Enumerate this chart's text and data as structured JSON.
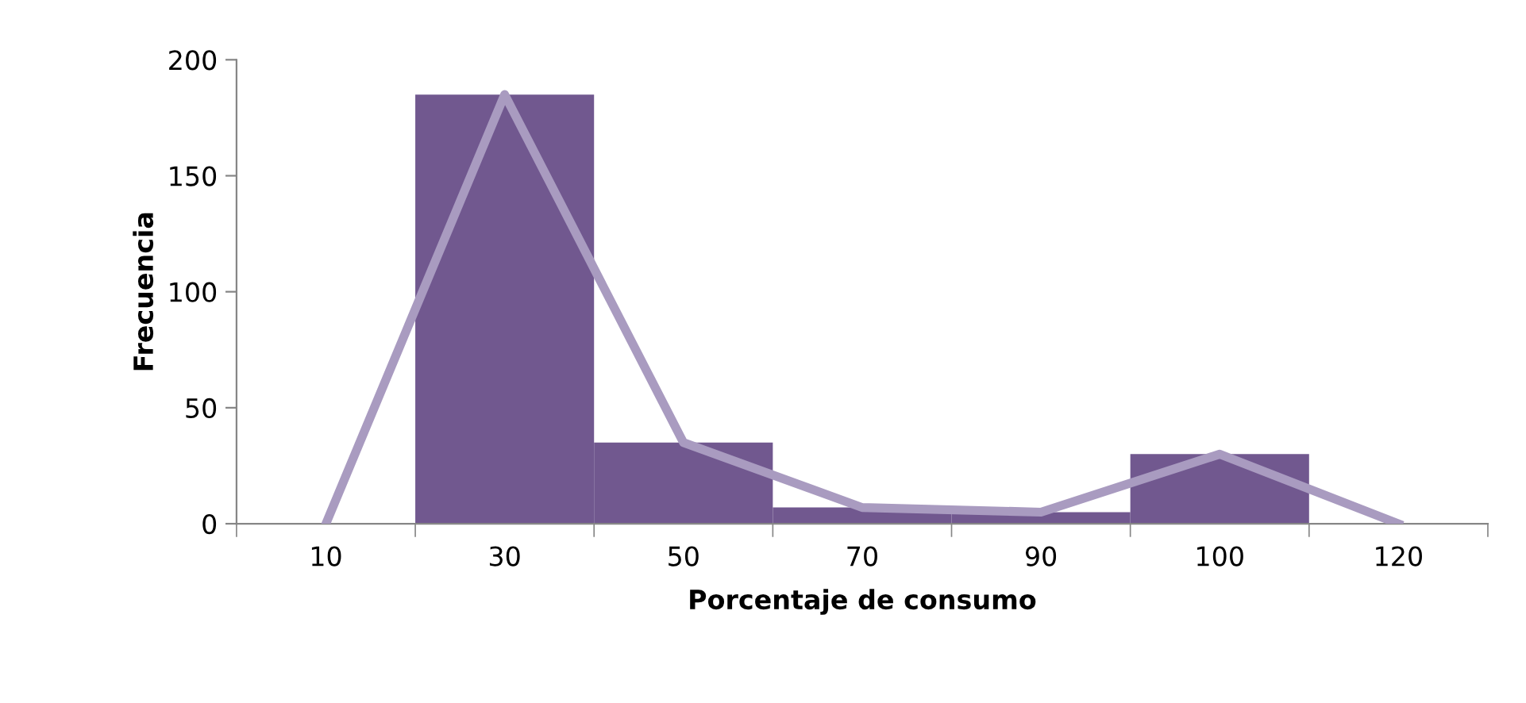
{
  "chart_data": {
    "type": "bar",
    "xlabel": "Porcentaje de consumo",
    "ylabel": "Frecuencia",
    "categories": [
      "10",
      "30",
      "50",
      "70",
      "90",
      "100",
      "120"
    ],
    "series": [
      {
        "color": "#71588f",
        "values": [
          0,
          185,
          35,
          7,
          5,
          30,
          0
        ]
      },
      {
        "type": "line",
        "color": "#a99bc0",
        "values": [
          0,
          185,
          35,
          7,
          5,
          30,
          0
        ]
      }
    ],
    "ylim": [
      0,
      200
    ],
    "yticks": [
      0,
      50,
      100,
      150,
      200
    ],
    "grid": false,
    "legend": false,
    "marker": "none",
    "line_style": "solid"
  }
}
